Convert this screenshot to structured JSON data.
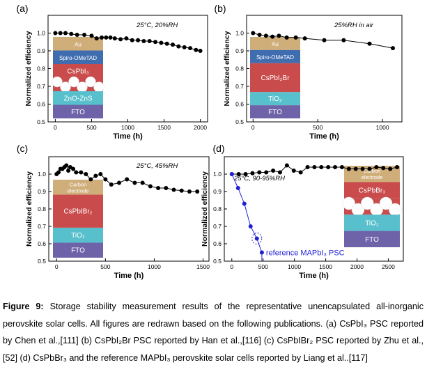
{
  "chart_data": [
    {
      "type": "scatter",
      "panel_label": "(a)",
      "annotation": "25°C, 20%RH",
      "xlabel": "Time (h)",
      "ylabel": "Normalized efficiency",
      "xlim": [
        -100,
        2100
      ],
      "ylim": [
        0.5,
        1.1
      ],
      "xticks": [
        0,
        500,
        1000,
        1500,
        2000
      ],
      "yticks": [
        0.5,
        0.6,
        0.7,
        0.8,
        0.9,
        1.0
      ],
      "series": [
        {
          "marker": "circle",
          "color": "#000000",
          "x": [
            0,
            70,
            140,
            220,
            300,
            400,
            500,
            570,
            640,
            700,
            760,
            820,
            900,
            980,
            1060,
            1140,
            1220,
            1300,
            1380,
            1460,
            1540,
            1620,
            1700,
            1780,
            1860,
            1940,
            2000
          ],
          "y": [
            1.0,
            1.0,
            1.0,
            0.995,
            0.99,
            0.99,
            0.985,
            0.97,
            0.975,
            0.975,
            0.975,
            0.97,
            0.965,
            0.97,
            0.96,
            0.96,
            0.955,
            0.955,
            0.95,
            0.945,
            0.94,
            0.935,
            0.925,
            0.92,
            0.915,
            0.905,
            0.9
          ]
        }
      ],
      "device_layers": [
        {
          "label": "Au",
          "color": "#cfae7a"
        },
        {
          "label": "Spiro-OMeTAD",
          "color": "#3f6db0"
        },
        {
          "label": "CsPbI₃",
          "color": "#c94b4b"
        },
        {
          "label": "",
          "color": "#c94b4b",
          "pattern": "spheres"
        },
        {
          "label": "ZnO-ZnS",
          "color": "#58bfcc"
        },
        {
          "label": "FTO",
          "color": "#6e63a9"
        }
      ]
    },
    {
      "type": "scatter",
      "panel_label": "(b)",
      "annotation": "25%RH in air",
      "xlabel": "Time (h)",
      "ylabel": "Normalized efficiency",
      "xlim": [
        -50,
        1150
      ],
      "ylim": [
        0.5,
        1.1
      ],
      "xticks": [
        0,
        500,
        1000
      ],
      "yticks": [
        0.5,
        0.6,
        0.7,
        0.8,
        0.9,
        1.0
      ],
      "series": [
        {
          "marker": "circle",
          "color": "#000000",
          "x": [
            0,
            50,
            100,
            150,
            200,
            260,
            330,
            400,
            550,
            700,
            900,
            1080
          ],
          "y": [
            1.0,
            0.99,
            0.985,
            0.98,
            0.985,
            0.975,
            0.975,
            0.97,
            0.96,
            0.96,
            0.94,
            0.915
          ]
        }
      ],
      "device_layers": [
        {
          "label": "Au",
          "color": "#cfae7a"
        },
        {
          "label": "Spiro-OMeTAD",
          "color": "#3f6db0"
        },
        {
          "label": "CsPbI₂Br",
          "color": "#c94b4b"
        },
        {
          "label": "TiO₂",
          "color": "#58bfcc"
        },
        {
          "label": "FTO",
          "color": "#6e63a9"
        }
      ]
    },
    {
      "type": "scatter",
      "panel_label": "(c)",
      "annotation": "25°C, 45%RH",
      "xlabel": "Time (h)",
      "ylabel": "Normalized efficiency",
      "xlim": [
        -80,
        1560
      ],
      "ylim": [
        0.5,
        1.1
      ],
      "xticks": [
        0,
        500,
        1000,
        1500
      ],
      "yticks": [
        0.5,
        0.6,
        0.7,
        0.8,
        0.9,
        1.0
      ],
      "series": [
        {
          "marker": "circle",
          "color": "#000000",
          "x": [
            0,
            20,
            40,
            60,
            80,
            100,
            120,
            140,
            170,
            200,
            250,
            300,
            350,
            400,
            450,
            500,
            560,
            640,
            720,
            800,
            880,
            960,
            1040,
            1120,
            1200,
            1280,
            1360,
            1440
          ],
          "y": [
            1.0,
            1.01,
            1.03,
            1.03,
            1.04,
            1.05,
            1.02,
            1.04,
            1.03,
            1.01,
            1.01,
            1.0,
            0.97,
            0.99,
            1.0,
            0.97,
            0.94,
            0.95,
            0.97,
            0.95,
            0.95,
            0.93,
            0.92,
            0.92,
            0.91,
            0.905,
            0.9,
            0.9
          ]
        }
      ],
      "device_layers": [
        {
          "label": "Carbon electrode",
          "color": "#cfae7a"
        },
        {
          "label": "CsPbIBr₂",
          "color": "#c94b4b"
        },
        {
          "label": "TiO₂",
          "color": "#58bfcc"
        },
        {
          "label": "FTO",
          "color": "#6e63a9"
        }
      ]
    },
    {
      "type": "scatter",
      "panel_label": "(d)",
      "annotation": "25°C, 90-95%RH",
      "xlabel": "Time (h)",
      "ylabel": "Normalized efficiency",
      "xlim": [
        -120,
        2740
      ],
      "ylim": [
        0.5,
        1.1
      ],
      "xticks": [
        0,
        500,
        1000,
        1500,
        2000,
        2500
      ],
      "yticks": [
        0.5,
        0.6,
        0.7,
        0.8,
        0.9,
        1.0
      ],
      "series": [
        {
          "marker": "circle",
          "color": "#000000",
          "x": [
            0,
            110,
            220,
            330,
            440,
            550,
            660,
            770,
            880,
            990,
            1100,
            1210,
            1320,
            1430,
            1540,
            1650,
            1760,
            1870,
            1980,
            2090,
            2200,
            2310,
            2420,
            2530,
            2640
          ],
          "y": [
            1.0,
            1.0,
            1.0,
            1.005,
            1.01,
            1.01,
            1.02,
            1.01,
            1.05,
            1.02,
            1.01,
            1.04,
            1.04,
            1.04,
            1.04,
            1.04,
            1.04,
            1.03,
            1.03,
            1.03,
            1.03,
            1.04,
            1.035,
            1.03,
            1.04
          ]
        },
        {
          "name": "reference MAPbI₃ PSC",
          "marker": "circle",
          "color": "#1f1fd6",
          "x": [
            0,
            100,
            200,
            300,
            400,
            480
          ],
          "y": [
            1.0,
            0.92,
            0.83,
            0.7,
            0.63,
            0.55
          ]
        }
      ],
      "device_layers": [
        {
          "label": "Carbon electrode",
          "color": "#cfae7a"
        },
        {
          "label": "CsPbBr₃",
          "color": "#c94b4b"
        },
        {
          "label": "",
          "color": "#c94b4b",
          "pattern": "spheres"
        },
        {
          "label": "TiO₂",
          "color": "#58bfcc"
        },
        {
          "label": "FTO",
          "color": "#6e63a9"
        }
      ]
    }
  ],
  "caption": {
    "label": "Figure 9:",
    "text": "Storage stability measurement results of the representative unencapsulated all-inorganic perovskite solar cells. All figures are redrawn based on the following publications. (a) CsPbI₃ PSC reported by Chen et al.,[111] (b) CsPbI₂Br PSC reported by Han et al.,[116] (c) CsPbIBr₂ PSC reported by Zhu et al.,[52] (d) CsPbBr₃ and the reference MAPbI₃ perovskite solar cells reported by Liang et al..[117]"
  }
}
